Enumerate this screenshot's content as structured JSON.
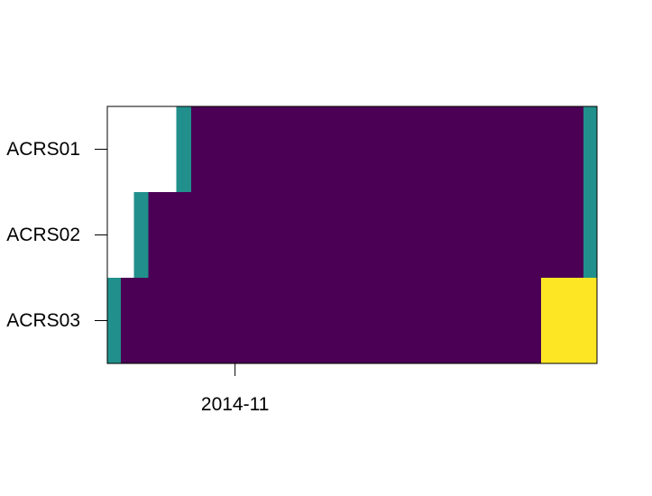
{
  "chart_data": {
    "type": "heatmap",
    "title": "",
    "xlabel": "",
    "ylabel": "",
    "x_range": [
      "2014-10-20",
      "2014-12-05"
    ],
    "x_ticks": [
      {
        "date": "2014-11-01",
        "label": "2014-11"
      }
    ],
    "rows": [
      "ACRS01",
      "ACRS02",
      "ACRS03"
    ],
    "grid": false,
    "legend": "none",
    "colors": {
      "low": "#440154",
      "mid": "#21908C",
      "high": "#FDE725",
      "plot_bg": "#4B0055",
      "background": "#FFFFFF"
    },
    "segments": [
      [
        {
          "start": "2014-10-26T12:00",
          "end": "2014-10-27T21:00",
          "color": "#21908C"
        },
        {
          "start": "2014-10-27T21:00",
          "end": "2014-12-03T18:00",
          "color": "#4B0055"
        },
        {
          "start": "2014-12-03T18:00",
          "end": "2014-12-05T00:00",
          "color": "#21908C"
        }
      ],
      [
        {
          "start": "2014-10-22T12:00",
          "end": "2014-10-23T21:00",
          "color": "#21908C"
        },
        {
          "start": "2014-10-23T21:00",
          "end": "2014-12-03T18:00",
          "color": "#4B0055"
        },
        {
          "start": "2014-12-03T18:00",
          "end": "2014-12-05T00:00",
          "color": "#21908C"
        }
      ],
      [
        {
          "start": "2014-10-20T00:00",
          "end": "2014-10-21T06:00",
          "color": "#21908C"
        },
        {
          "start": "2014-10-21T06:00",
          "end": "2014-11-29T18:00",
          "color": "#4B0055"
        },
        {
          "start": "2014-11-29T18:00",
          "end": "2014-12-05T00:00",
          "color": "#FDE725"
        }
      ]
    ]
  }
}
